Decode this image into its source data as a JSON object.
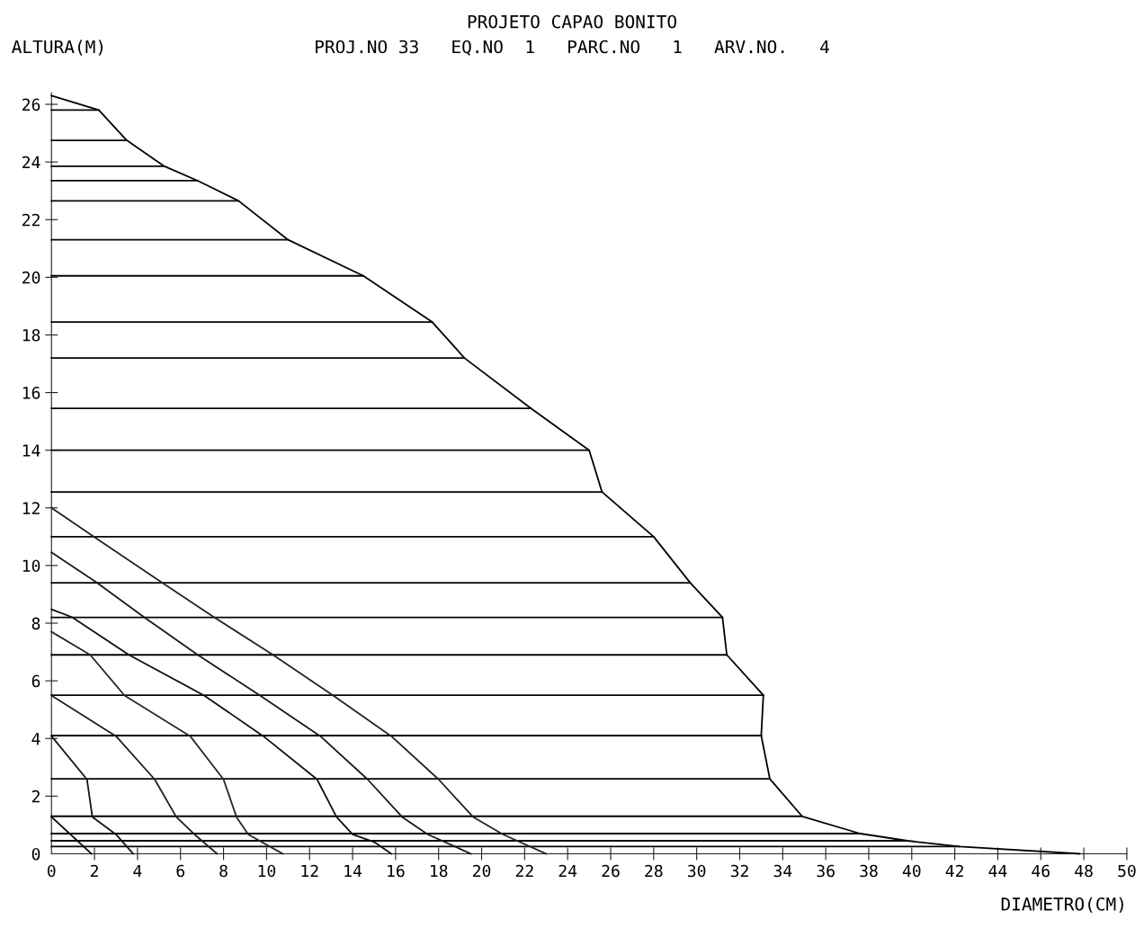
{
  "chart_data": {
    "type": "line",
    "title": "PROJETO CAPAO BONITO",
    "subtitle": "PROJ.NO 33   EQ.NO  1   PARC.NO   1   ARV.NO.   4",
    "xlabel": "DIAMETRO(CM)",
    "ylabel": "ALTURA(M)",
    "xlim": [
      0,
      50
    ],
    "ylim": [
      0,
      26.4
    ],
    "xticks": [
      0,
      2,
      4,
      6,
      8,
      10,
      12,
      14,
      16,
      18,
      20,
      22,
      24,
      26,
      28,
      30,
      32,
      34,
      36,
      38,
      40,
      42,
      44,
      46,
      48,
      50
    ],
    "yticks": [
      0,
      2,
      4,
      6,
      8,
      10,
      12,
      14,
      16,
      18,
      20,
      22,
      24,
      26
    ],
    "grid": false,
    "marker": "none",
    "line_style": "solid",
    "series": [
      {
        "color": "#000000",
        "x": [
          0,
          2.2,
          3.5,
          5.25,
          6.8,
          8.7,
          11.0,
          14.5,
          17.7,
          19.2,
          22.3,
          25.0,
          25.6,
          28.0,
          29.7,
          31.2,
          31.4,
          33.1,
          33.0,
          33.4,
          34.9,
          37.6,
          39.8,
          42.2,
          47.8
        ],
        "values": [
          26.3,
          25.8,
          24.75,
          23.85,
          23.35,
          22.65,
          21.3,
          20.05,
          18.45,
          17.2,
          15.45,
          14.0,
          12.55,
          11.0,
          9.4,
          8.2,
          6.9,
          5.5,
          4.1,
          2.6,
          1.3,
          0.7,
          0.45,
          0.25,
          0
        ]
      },
      {
        "color": "#050505",
        "x": [
          0,
          2.2,
          null,
          0,
          3.5,
          null,
          0,
          5.25,
          null,
          0,
          6.8,
          null,
          0,
          8.7,
          null,
          0,
          11.0,
          null,
          0,
          14.5,
          null,
          0,
          17.7,
          null,
          0,
          19.2,
          null,
          0,
          22.3,
          null,
          0,
          25.0,
          null,
          0,
          25.6,
          null,
          0,
          28.0,
          null,
          0,
          29.7,
          null,
          0,
          31.2,
          null,
          0,
          31.4,
          null,
          0,
          33.1,
          null,
          0,
          33.0,
          null,
          0,
          33.4,
          null,
          0,
          34.9,
          null,
          0,
          37.6,
          null,
          0,
          39.8,
          null,
          0,
          42.2
        ],
        "values": [
          25.8,
          25.8,
          null,
          24.75,
          24.75,
          null,
          23.85,
          23.85,
          null,
          23.35,
          23.35,
          null,
          22.65,
          22.65,
          null,
          21.3,
          21.3,
          null,
          20.05,
          20.05,
          null,
          18.45,
          18.45,
          null,
          17.2,
          17.2,
          null,
          15.45,
          15.45,
          null,
          14.0,
          14.0,
          null,
          12.55,
          12.55,
          null,
          11.0,
          11.0,
          null,
          9.4,
          9.4,
          null,
          8.2,
          8.2,
          null,
          6.9,
          6.9,
          null,
          5.5,
          5.5,
          null,
          4.1,
          4.1,
          null,
          2.6,
          2.6,
          null,
          1.3,
          1.3,
          null,
          0.7,
          0.7,
          null,
          0.45,
          0.45,
          null,
          0.25,
          0.25
        ]
      },
      {
        "color": "#0a0a0a",
        "x": [
          0,
          1.86
        ],
        "values": [
          1.28,
          0
        ]
      },
      {
        "color": "#141414",
        "x": [
          0,
          1.65,
          1.9,
          3.0,
          3.8
        ],
        "values": [
          4.08,
          2.58,
          1.28,
          0.67,
          0
        ]
      },
      {
        "color": "#1e1e1e",
        "x": [
          0,
          3.0,
          4.8,
          5.8,
          6.65,
          7.7
        ],
        "values": [
          5.49,
          4.08,
          2.58,
          1.28,
          0.67,
          0
        ]
      },
      {
        "color": "#282828",
        "x": [
          0,
          1.8,
          3.4,
          6.45,
          8.0,
          8.6,
          9.15,
          10.75
        ],
        "values": [
          7.7,
          6.9,
          5.49,
          4.08,
          2.58,
          1.28,
          0.67,
          0
        ]
      },
      {
        "color": "#0f0f0f",
        "x": [
          0,
          0.95,
          3.6,
          7.1,
          9.85,
          12.35,
          13.25,
          14.0,
          15.0,
          15.8
        ],
        "values": [
          8.48,
          8.21,
          6.9,
          5.49,
          4.08,
          2.58,
          1.28,
          0.67,
          0.41,
          0
        ]
      },
      {
        "color": "#191919",
        "x": [
          0,
          2.07,
          4.3,
          6.8,
          9.7,
          12.5,
          14.7,
          16.3,
          17.5,
          19.5
        ],
        "values": [
          10.46,
          9.43,
          8.21,
          6.9,
          5.49,
          4.08,
          2.58,
          1.28,
          0.67,
          0
        ]
      },
      {
        "color": "#232323",
        "x": [
          0,
          2.07,
          5.1,
          7.55,
          10.3,
          13.1,
          15.8,
          18.0,
          19.6,
          21.0,
          23.0
        ],
        "values": [
          12.0,
          10.95,
          9.43,
          8.21,
          6.9,
          5.49,
          4.08,
          2.58,
          1.28,
          0.67,
          0
        ]
      }
    ]
  }
}
